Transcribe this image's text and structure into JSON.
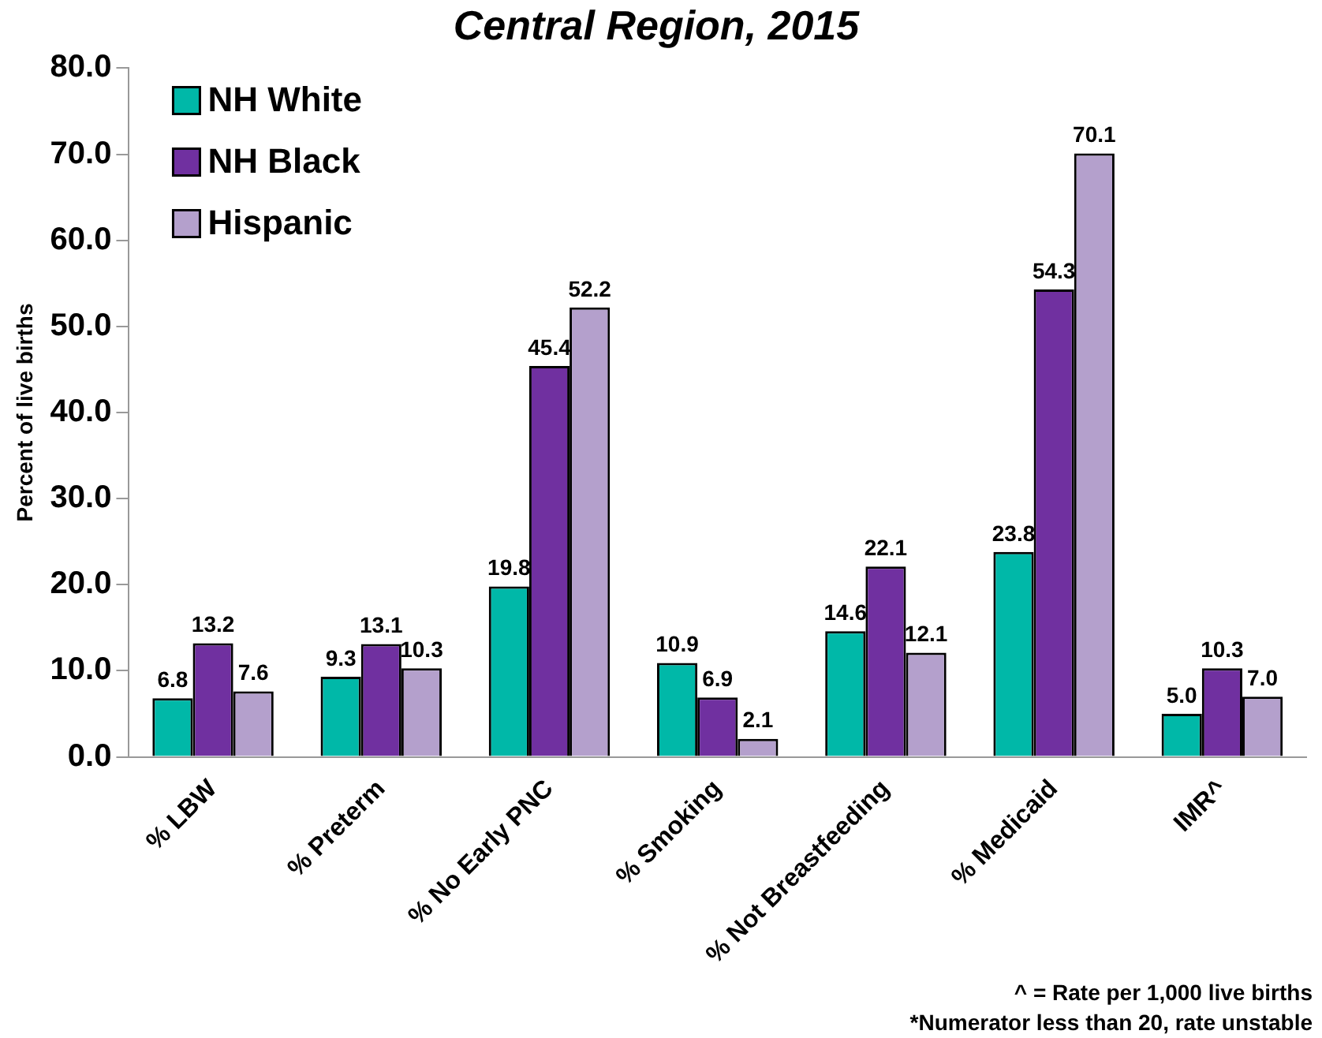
{
  "chart_data": {
    "type": "bar",
    "title": "Central Region, 2015",
    "ylabel": "Percent of live births",
    "categories": [
      "% LBW",
      "% Preterm",
      "% No Early PNC",
      "% Smoking",
      "% Not Breastfeeding",
      "% Medicaid",
      "IMR^"
    ],
    "series": [
      {
        "name": "NH White",
        "color": "#00b8a8",
        "values": [
          6.8,
          9.3,
          19.8,
          10.9,
          14.6,
          23.8,
          5.0
        ],
        "value_labels": [
          "6.8",
          "9.3",
          "19.8",
          "10.9",
          "14.6",
          "23.8",
          "5.0"
        ]
      },
      {
        "name": "NH Black",
        "color": "#7030a0",
        "values": [
          13.2,
          13.1,
          45.4,
          6.9,
          22.1,
          54.3,
          10.3
        ],
        "value_labels": [
          "13.2",
          "13.1",
          "45.4",
          "6.9",
          "22.1",
          "54.3",
          "10.3"
        ]
      },
      {
        "name": "Hispanic",
        "color": "#b4a0cc",
        "values": [
          7.6,
          10.3,
          52.2,
          2.1,
          12.1,
          70.1,
          7.0
        ],
        "value_labels": [
          "7.6",
          "10.3",
          "52.2",
          "2.1",
          "12.1",
          "70.1",
          "7.0"
        ]
      }
    ],
    "ylim": [
      0,
      80
    ],
    "yticks": [
      {
        "value": 0,
        "label": "0.0"
      },
      {
        "value": 10,
        "label": "10.0"
      },
      {
        "value": 20,
        "label": "20.0"
      },
      {
        "value": 30,
        "label": "30.0"
      },
      {
        "value": 40,
        "label": "40.0"
      },
      {
        "value": 50,
        "label": "50.0"
      },
      {
        "value": 60,
        "label": "60.0"
      },
      {
        "value": 70,
        "label": "70.0"
      },
      {
        "value": 80,
        "label": "80.0"
      }
    ],
    "grid": false,
    "legend": "top left",
    "annotations": [
      "^ = Rate per 1,000 live births",
      "*Numerator less than 20, rate unstable"
    ]
  }
}
